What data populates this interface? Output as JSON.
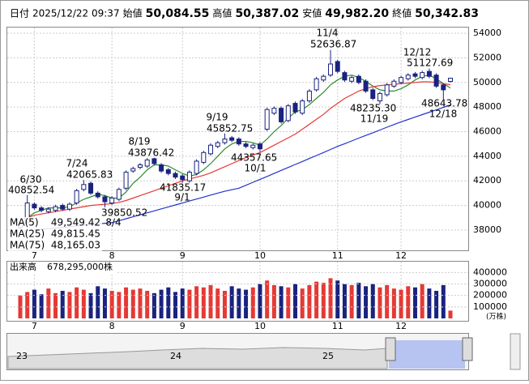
{
  "header": {
    "date_label": "日付",
    "date": "2025/12/22 09:37",
    "open_label": "始値",
    "open": "50,084.55",
    "high_label": "高値",
    "high": "50,387.02",
    "low_label": "安値",
    "low": "49,982.20",
    "close_label": "終値",
    "close": "50,342.83"
  },
  "chart_data": [
    {
      "type": "candlestick",
      "open": [
        38200,
        38600,
        40100,
        39800,
        39500,
        39600,
        40000,
        39700,
        40200,
        41300,
        41800,
        41000,
        40700,
        40200,
        40500,
        41400,
        42800,
        43100,
        43200,
        43800,
        43300,
        42900,
        42600,
        42400,
        42000,
        42600,
        43500,
        44200,
        44800,
        45100,
        45500,
        45400,
        45000,
        44700,
        45000,
        46200,
        47500,
        47900,
        46900,
        48300,
        47500,
        48500,
        49400,
        50200,
        50600,
        51700,
        50800,
        50100,
        50500,
        50100,
        49400,
        48500,
        49000,
        49700,
        50000,
        50300,
        50700,
        50400,
        50900,
        50600,
        49800,
        50084.55
      ],
      "high": [
        38650,
        40852.54,
        40250,
        39950,
        39850,
        40050,
        40150,
        40250,
        41350,
        42065.83,
        41950,
        41150,
        40850,
        40750,
        41450,
        42850,
        43150,
        43450,
        43850,
        43876.42,
        43450,
        43050,
        42750,
        42550,
        42850,
        43750,
        44450,
        45050,
        45250,
        45852.75,
        45650,
        45550,
        45150,
        45050,
        45150,
        47950,
        48050,
        48050,
        48250,
        48450,
        48650,
        49450,
        50450,
        50650,
        52636.87,
        51850,
        50950,
        50550,
        50650,
        50250,
        49550,
        49250,
        49950,
        50250,
        50550,
        50750,
        50850,
        50950,
        51127.69,
        50750,
        49950,
        50387.02
      ],
      "low": [
        38050,
        38450,
        39650,
        39450,
        39350,
        39450,
        39550,
        39550,
        40050,
        41150,
        40850,
        40550,
        39850.52,
        40050,
        40350,
        41250,
        42650,
        42950,
        43050,
        43250,
        42650,
        42450,
        42150,
        41835.17,
        41850,
        42450,
        43350,
        44050,
        44650,
        44950,
        45150,
        44850,
        44650,
        44550,
        44357.65,
        46050,
        47350,
        46650,
        46750,
        47450,
        47350,
        48350,
        49250,
        50050,
        50450,
        50750,
        50050,
        49950,
        49850,
        49150,
        48550,
        48235.3,
        48850,
        49550,
        49850,
        50150,
        50350,
        50250,
        50350,
        49550,
        48643.78,
        49982.2
      ],
      "close": [
        38500,
        40200,
        39800,
        39600,
        39700,
        39900,
        39700,
        40100,
        41200,
        41700,
        41000,
        40700,
        40300,
        40600,
        41300,
        42700,
        43000,
        43300,
        43700,
        43400,
        42800,
        42600,
        42300,
        42100,
        42700,
        43600,
        44300,
        44900,
        45100,
        45400,
        45300,
        45000,
        44800,
        44900,
        44600,
        47800,
        47900,
        46800,
        48100,
        47600,
        48500,
        49300,
        50300,
        50500,
        51500,
        50900,
        50200,
        50400,
        50000,
        49300,
        48700,
        49100,
        49800,
        50100,
        50400,
        50600,
        50500,
        50800,
        50500,
        49700,
        49400,
        50342.83
      ],
      "up_color": "#ffffff",
      "down_color": "#1a237e",
      "series": [
        {
          "name": "MA(5)",
          "color": "#2e8b2e",
          "last_label": "49,549.42",
          "values": [
            38400,
            39000,
            39400,
            39600,
            39800,
            39800,
            39800,
            39900,
            40200,
            40500,
            40700,
            40900,
            40800,
            40600,
            40600,
            41100,
            41800,
            42300,
            42900,
            43300,
            43300,
            43200,
            42900,
            42600,
            42400,
            42500,
            42900,
            43400,
            44000,
            44600,
            45000,
            45200,
            45200,
            45100,
            44900,
            45400,
            46000,
            46500,
            47100,
            47600,
            47800,
            48200,
            48700,
            49200,
            49800,
            50200,
            50500,
            50600,
            50400,
            50100,
            49700,
            49400,
            49300,
            49300,
            49500,
            49800,
            50200,
            50500,
            50600,
            50300,
            49900,
            49549.42
          ]
        },
        {
          "name": "MA(25)",
          "color": "#e53935",
          "last_label": "49,815.45",
          "values": [
            38800,
            39000,
            39200,
            39300,
            39400,
            39500,
            39600,
            39700,
            39800,
            39900,
            40000,
            40050,
            40100,
            40150,
            40250,
            40400,
            40600,
            40800,
            41000,
            41200,
            41400,
            41600,
            41800,
            42000,
            42150,
            42300,
            42450,
            42650,
            42900,
            43150,
            43400,
            43650,
            43900,
            44100,
            44300,
            44600,
            44900,
            45200,
            45500,
            45800,
            46200,
            46600,
            47000,
            47400,
            47900,
            48300,
            48700,
            49000,
            49300,
            49500,
            49650,
            49750,
            49800,
            49850,
            49900,
            49950,
            50000,
            50050,
            50050,
            50000,
            49900,
            49815.45
          ]
        },
        {
          "name": "MA(75)",
          "color": "#2233cc",
          "last_label": "48,165.03",
          "values": [
            37900,
            37950,
            38000,
            38060,
            38110,
            38170,
            38220,
            38280,
            38330,
            38390,
            38440,
            38500,
            38550,
            38600,
            38760,
            38920,
            39080,
            39240,
            39400,
            39560,
            39720,
            39880,
            40040,
            40200,
            40360,
            40520,
            40680,
            40840,
            41000,
            41150,
            41280,
            41400,
            41640,
            41880,
            42120,
            42360,
            42600,
            42850,
            43090,
            43330,
            43570,
            43820,
            44060,
            44300,
            44550,
            44800,
            45020,
            45240,
            45470,
            45690,
            45910,
            46130,
            46360,
            46580,
            46800,
            46990,
            47190,
            47380,
            47580,
            47770,
            47970,
            48165.03
          ]
        }
      ],
      "annotations": [
        {
          "date": "6/30",
          "price": "40852.54"
        },
        {
          "date": "7/24",
          "price": "42065.83"
        },
        {
          "date": "8/19",
          "price": "43876.42"
        },
        {
          "date": "9/1",
          "price": "41835.17"
        },
        {
          "date": "8/4",
          "price": "39850.52"
        },
        {
          "date": "9/19",
          "price": "45852.75"
        },
        {
          "date": "10/1",
          "price": "44357.65"
        },
        {
          "date": "11/4",
          "price": "52636.87"
        },
        {
          "date": "11/19",
          "price": "48235.30"
        },
        {
          "date": "12/12",
          "price": "51127.69"
        },
        {
          "date": "12/18",
          "price": "48643.78"
        }
      ],
      "ylim": [
        36350,
        54530
      ],
      "yticks": [
        38000,
        40000,
        42000,
        44000,
        46000,
        48000,
        50000,
        52000,
        54000
      ],
      "xticks": [
        {
          "value": 2,
          "label": "7"
        },
        {
          "value": 13,
          "label": "8"
        },
        {
          "value": 23,
          "label": "9"
        },
        {
          "value": 34,
          "label": "10"
        },
        {
          "value": 45,
          "label": "11"
        },
        {
          "value": 54,
          "label": "12"
        }
      ],
      "grid": true
    },
    {
      "type": "bar",
      "title": "出来高",
      "total_label": "678,295,000株",
      "unit": "(万株)",
      "up_color": "#e53935",
      "down_color": "#1a237e",
      "values": [
        200000,
        230000,
        250000,
        210000,
        260000,
        220000,
        240000,
        230000,
        270000,
        250000,
        220000,
        280000,
        260000,
        240000,
        230000,
        270000,
        250000,
        260000,
        240000,
        220000,
        250000,
        270000,
        230000,
        260000,
        250000,
        280000,
        270000,
        290000,
        260000,
        240000,
        280000,
        260000,
        250000,
        270000,
        300000,
        330000,
        290000,
        280000,
        270000,
        300000,
        260000,
        290000,
        320000,
        310000,
        350000,
        330000,
        300000,
        290000,
        310000,
        280000,
        300000,
        270000,
        290000,
        260000,
        250000,
        280000,
        270000,
        300000,
        260000,
        240000,
        290000,
        67829.5
      ],
      "ylim": [
        0,
        480000
      ],
      "yticks": [
        100000,
        200000,
        300000,
        400000
      ],
      "xticks": [
        {
          "value": 2,
          "label": "7"
        },
        {
          "value": 13,
          "label": "8"
        },
        {
          "value": 23,
          "label": "9"
        },
        {
          "value": 34,
          "label": "10"
        },
        {
          "value": 45,
          "label": "11"
        },
        {
          "value": 54,
          "label": "12"
        }
      ],
      "grid": true
    }
  ],
  "navigator": {
    "labels": [
      "23",
      "24",
      "25"
    ]
  }
}
